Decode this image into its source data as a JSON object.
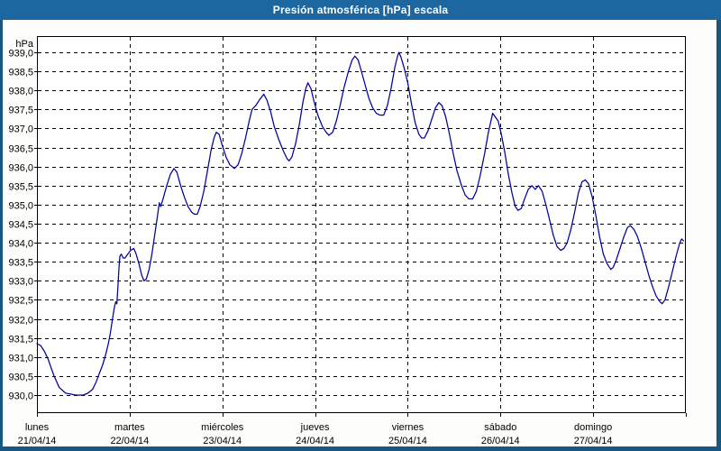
{
  "window": {
    "title": "Presión atmosférica [hPa] escala"
  },
  "colors": {
    "titlebar": "#1d67a0",
    "window_border": "#195680",
    "plot_background": "#ffffff",
    "grid": "#000000",
    "frame": "#000000",
    "text": "#000000",
    "line": "#0000a0"
  },
  "chart_data": {
    "type": "line",
    "title": "Presión atmosférica [hPa] escala",
    "xlabel": "",
    "ylabel": "hPa",
    "ylim": [
      929.55,
      939.45
    ],
    "grid": true,
    "y_ticks": [
      {
        "label": "939,0",
        "value": 939.0
      },
      {
        "label": "938,5",
        "value": 938.5
      },
      {
        "label": "938,0",
        "value": 938.0
      },
      {
        "label": "937,5",
        "value": 937.5
      },
      {
        "label": "937,0",
        "value": 937.0
      },
      {
        "label": "936,5",
        "value": 936.5
      },
      {
        "label": "936,0",
        "value": 936.0
      },
      {
        "label": "935,5",
        "value": 935.5
      },
      {
        "label": "935,0",
        "value": 935.0
      },
      {
        "label": "934,5",
        "value": 934.5
      },
      {
        "label": "934,0",
        "value": 934.0
      },
      {
        "label": "933,5",
        "value": 933.5
      },
      {
        "label": "933,0",
        "value": 933.0
      },
      {
        "label": "932,5",
        "value": 932.5
      },
      {
        "label": "932,0",
        "value": 932.0
      },
      {
        "label": "931,5",
        "value": 931.5
      },
      {
        "label": "931,0",
        "value": 931.0
      },
      {
        "label": "930,5",
        "value": 930.5
      },
      {
        "label": "930,0",
        "value": 930.0
      }
    ],
    "x_days": [
      {
        "name": "lunes",
        "date": "21/04/14"
      },
      {
        "name": "martes",
        "date": "22/04/14"
      },
      {
        "name": "miércoles",
        "date": "23/04/14"
      },
      {
        "name": "jueves",
        "date": "24/04/14"
      },
      {
        "name": "viernes",
        "date": "25/04/14"
      },
      {
        "name": "sábado",
        "date": "26/04/14"
      },
      {
        "name": "domingo",
        "date": "27/04/14"
      }
    ],
    "x_unit": "days (0 = lunes 21/04/14 00:00)",
    "series": [
      {
        "name": "Presión atmosférica",
        "color": "#0000a0",
        "points": [
          [
            0.0,
            931.35
          ],
          [
            0.04,
            931.3
          ],
          [
            0.08,
            931.15
          ],
          [
            0.12,
            930.95
          ],
          [
            0.155,
            930.7
          ],
          [
            0.185,
            930.5
          ],
          [
            0.24,
            930.2
          ],
          [
            0.31,
            930.05
          ],
          [
            0.42,
            930.0
          ],
          [
            0.5,
            930.0
          ],
          [
            0.55,
            930.05
          ],
          [
            0.6,
            930.15
          ],
          [
            0.64,
            930.35
          ],
          [
            0.67,
            930.55
          ],
          [
            0.71,
            930.8
          ],
          [
            0.74,
            931.05
          ],
          [
            0.77,
            931.35
          ],
          [
            0.79,
            931.6
          ],
          [
            0.815,
            932.0
          ],
          [
            0.835,
            932.3
          ],
          [
            0.85,
            932.45
          ],
          [
            0.862,
            932.4
          ],
          [
            0.875,
            932.9
          ],
          [
            0.885,
            933.35
          ],
          [
            0.895,
            933.65
          ],
          [
            0.91,
            933.7
          ],
          [
            0.93,
            933.6
          ],
          [
            0.95,
            933.6
          ],
          [
            0.98,
            933.7
          ],
          [
            1.01,
            933.8
          ],
          [
            1.045,
            933.85
          ],
          [
            1.07,
            933.7
          ],
          [
            1.1,
            933.45
          ],
          [
            1.13,
            933.15
          ],
          [
            1.155,
            933.0
          ],
          [
            1.18,
            933.05
          ],
          [
            1.21,
            933.3
          ],
          [
            1.24,
            933.7
          ],
          [
            1.27,
            934.2
          ],
          [
            1.3,
            934.7
          ],
          [
            1.32,
            935.05
          ],
          [
            1.335,
            934.95
          ],
          [
            1.36,
            935.15
          ],
          [
            1.4,
            935.5
          ],
          [
            1.44,
            935.8
          ],
          [
            1.478,
            935.95
          ],
          [
            1.51,
            935.85
          ],
          [
            1.55,
            935.5
          ],
          [
            1.59,
            935.2
          ],
          [
            1.63,
            934.95
          ],
          [
            1.67,
            934.8
          ],
          [
            1.7,
            934.75
          ],
          [
            1.73,
            934.75
          ],
          [
            1.76,
            934.95
          ],
          [
            1.8,
            935.35
          ],
          [
            1.84,
            935.9
          ],
          [
            1.88,
            936.45
          ],
          [
            1.91,
            936.75
          ],
          [
            1.934,
            936.9
          ],
          [
            1.965,
            936.85
          ],
          [
            2.0,
            936.55
          ],
          [
            2.04,
            936.25
          ],
          [
            2.08,
            936.05
          ],
          [
            2.13,
            935.95
          ],
          [
            2.17,
            936.05
          ],
          [
            2.21,
            936.35
          ],
          [
            2.25,
            936.75
          ],
          [
            2.29,
            937.2
          ],
          [
            2.32,
            937.5
          ],
          [
            2.36,
            937.6
          ],
          [
            2.4,
            937.75
          ],
          [
            2.447,
            937.9
          ],
          [
            2.48,
            937.75
          ],
          [
            2.52,
            937.45
          ],
          [
            2.56,
            937.05
          ],
          [
            2.61,
            936.7
          ],
          [
            2.66,
            936.4
          ],
          [
            2.7,
            936.2
          ],
          [
            2.72,
            936.15
          ],
          [
            2.75,
            936.25
          ],
          [
            2.79,
            936.6
          ],
          [
            2.83,
            937.1
          ],
          [
            2.87,
            937.7
          ],
          [
            2.9,
            938.05
          ],
          [
            2.923,
            938.2
          ],
          [
            2.955,
            938.05
          ],
          [
            2.99,
            937.7
          ],
          [
            3.03,
            937.35
          ],
          [
            3.08,
            937.05
          ],
          [
            3.12,
            936.9
          ],
          [
            3.15,
            936.82
          ],
          [
            3.19,
            936.9
          ],
          [
            3.23,
            937.2
          ],
          [
            3.27,
            937.6
          ],
          [
            3.31,
            938.05
          ],
          [
            3.36,
            938.5
          ],
          [
            3.4,
            938.8
          ],
          [
            3.43,
            938.9
          ],
          [
            3.465,
            938.8
          ],
          [
            3.5,
            938.5
          ],
          [
            3.54,
            938.15
          ],
          [
            3.58,
            937.8
          ],
          [
            3.62,
            937.55
          ],
          [
            3.66,
            937.4
          ],
          [
            3.7,
            937.35
          ],
          [
            3.74,
            937.35
          ],
          [
            3.78,
            937.6
          ],
          [
            3.82,
            938.05
          ],
          [
            3.86,
            938.6
          ],
          [
            3.89,
            938.9
          ],
          [
            3.905,
            939.0
          ],
          [
            3.93,
            938.85
          ],
          [
            3.96,
            938.6
          ],
          [
            4.0,
            938.2
          ],
          [
            4.04,
            937.65
          ],
          [
            4.08,
            937.15
          ],
          [
            4.12,
            936.85
          ],
          [
            4.15,
            936.75
          ],
          [
            4.18,
            936.75
          ],
          [
            4.22,
            936.95
          ],
          [
            4.26,
            937.25
          ],
          [
            4.3,
            937.55
          ],
          [
            4.335,
            937.68
          ],
          [
            4.37,
            937.6
          ],
          [
            4.41,
            937.3
          ],
          [
            4.45,
            936.85
          ],
          [
            4.49,
            936.35
          ],
          [
            4.53,
            935.9
          ],
          [
            4.58,
            935.5
          ],
          [
            4.62,
            935.25
          ],
          [
            4.66,
            935.15
          ],
          [
            4.7,
            935.15
          ],
          [
            4.74,
            935.35
          ],
          [
            4.78,
            935.75
          ],
          [
            4.83,
            936.35
          ],
          [
            4.87,
            936.9
          ],
          [
            4.916,
            937.4
          ],
          [
            4.945,
            937.3
          ],
          [
            4.975,
            937.2
          ],
          [
            5.005,
            936.9
          ],
          [
            5.045,
            936.4
          ],
          [
            5.085,
            935.8
          ],
          [
            5.125,
            935.3
          ],
          [
            5.16,
            934.95
          ],
          [
            5.19,
            934.85
          ],
          [
            5.225,
            934.9
          ],
          [
            5.26,
            935.15
          ],
          [
            5.3,
            935.4
          ],
          [
            5.34,
            935.5
          ],
          [
            5.375,
            935.4
          ],
          [
            5.41,
            935.5
          ],
          [
            5.45,
            935.35
          ],
          [
            5.49,
            935.0
          ],
          [
            5.53,
            934.6
          ],
          [
            5.57,
            934.2
          ],
          [
            5.61,
            933.9
          ],
          [
            5.65,
            933.8
          ],
          [
            5.685,
            933.85
          ],
          [
            5.72,
            934.0
          ],
          [
            5.76,
            934.35
          ],
          [
            5.8,
            934.8
          ],
          [
            5.84,
            935.3
          ],
          [
            5.88,
            935.6
          ],
          [
            5.915,
            935.65
          ],
          [
            5.95,
            935.55
          ],
          [
            5.99,
            935.2
          ],
          [
            6.03,
            934.7
          ],
          [
            6.07,
            934.15
          ],
          [
            6.11,
            933.7
          ],
          [
            6.15,
            933.45
          ],
          [
            6.19,
            933.3
          ],
          [
            6.215,
            933.35
          ],
          [
            6.25,
            933.55
          ],
          [
            6.29,
            933.85
          ],
          [
            6.33,
            934.15
          ],
          [
            6.37,
            934.4
          ],
          [
            6.4,
            934.45
          ],
          [
            6.44,
            934.35
          ],
          [
            6.48,
            934.15
          ],
          [
            6.52,
            933.85
          ],
          [
            6.56,
            933.5
          ],
          [
            6.6,
            933.15
          ],
          [
            6.64,
            932.85
          ],
          [
            6.68,
            932.6
          ],
          [
            6.72,
            932.45
          ],
          [
            6.745,
            932.4
          ],
          [
            6.775,
            932.5
          ],
          [
            6.815,
            932.85
          ],
          [
            6.855,
            933.25
          ],
          [
            6.895,
            933.65
          ],
          [
            6.935,
            934.0
          ],
          [
            6.955,
            934.1
          ],
          [
            6.975,
            934.05
          ]
        ]
      }
    ]
  }
}
